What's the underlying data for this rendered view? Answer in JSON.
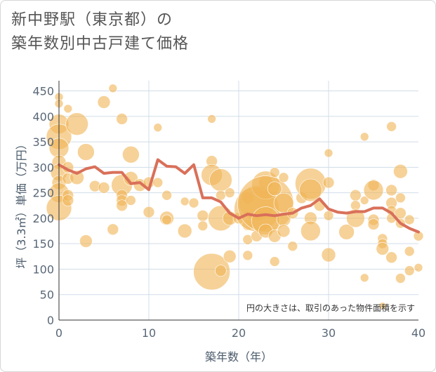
{
  "title": {
    "line1": "新中野駅（東京都）の",
    "line2": "築年数別中古戸建て価格"
  },
  "chart_data": {
    "type": "scatter",
    "title": "新中野駅（東京都）の築年数別中古戸建て価格",
    "xlabel": "築年数（年）",
    "ylabel": "坪（3.3㎡）単価（万円）",
    "xlim": [
      0,
      40
    ],
    "ylim": [
      0,
      470
    ],
    "xticks": [
      0,
      10,
      20,
      30,
      40
    ],
    "yticks": [
      0,
      50,
      100,
      150,
      200,
      250,
      300,
      350,
      400,
      450
    ],
    "annotation": "円の大きさは、取引のあった物件面積を示す",
    "colors": {
      "bubble": "#f0b455",
      "line": "#d9705a",
      "grid": "#d0dde8"
    },
    "bubbles": [
      {
        "x": 0,
        "y": 438,
        "s": 6
      },
      {
        "x": 0,
        "y": 425,
        "s": 6
      },
      {
        "x": 0,
        "y": 385,
        "s": 14
      },
      {
        "x": 0,
        "y": 360,
        "s": 18
      },
      {
        "x": 0,
        "y": 338,
        "s": 14
      },
      {
        "x": 0,
        "y": 310,
        "s": 10
      },
      {
        "x": 0,
        "y": 290,
        "s": 12
      },
      {
        "x": 0,
        "y": 270,
        "s": 10
      },
      {
        "x": 0,
        "y": 250,
        "s": 14
      },
      {
        "x": 0,
        "y": 220,
        "s": 18
      },
      {
        "x": 1,
        "y": 415,
        "s": 6
      },
      {
        "x": 1,
        "y": 300,
        "s": 8
      },
      {
        "x": 1,
        "y": 278,
        "s": 8
      },
      {
        "x": 1,
        "y": 245,
        "s": 8
      },
      {
        "x": 1,
        "y": 235,
        "s": 8
      },
      {
        "x": 2,
        "y": 385,
        "s": 16
      },
      {
        "x": 2,
        "y": 280,
        "s": 10
      },
      {
        "x": 3,
        "y": 330,
        "s": 12
      },
      {
        "x": 3,
        "y": 155,
        "s": 9
      },
      {
        "x": 4,
        "y": 263,
        "s": 8
      },
      {
        "x": 5,
        "y": 428,
        "s": 9
      },
      {
        "x": 5,
        "y": 260,
        "s": 8
      },
      {
        "x": 6,
        "y": 455,
        "s": 6
      },
      {
        "x": 6,
        "y": 178,
        "s": 8
      },
      {
        "x": 7,
        "y": 395,
        "s": 8
      },
      {
        "x": 7,
        "y": 265,
        "s": 15
      },
      {
        "x": 7,
        "y": 245,
        "s": 8
      },
      {
        "x": 7,
        "y": 235,
        "s": 8
      },
      {
        "x": 7,
        "y": 225,
        "s": 8
      },
      {
        "x": 8,
        "y": 325,
        "s": 12
      },
      {
        "x": 8,
        "y": 278,
        "s": 10
      },
      {
        "x": 8,
        "y": 235,
        "s": 7
      },
      {
        "x": 9,
        "y": 265,
        "s": 9
      },
      {
        "x": 10,
        "y": 270,
        "s": 8
      },
      {
        "x": 10,
        "y": 212,
        "s": 8
      },
      {
        "x": 11,
        "y": 378,
        "s": 6
      },
      {
        "x": 11,
        "y": 270,
        "s": 7
      },
      {
        "x": 12,
        "y": 245,
        "s": 7
      },
      {
        "x": 12,
        "y": 200,
        "s": 10
      },
      {
        "x": 12,
        "y": 197,
        "s": 7
      },
      {
        "x": 14,
        "y": 233,
        "s": 6
      },
      {
        "x": 14,
        "y": 175,
        "s": 10
      },
      {
        "x": 15,
        "y": 230,
        "s": 7
      },
      {
        "x": 16,
        "y": 205,
        "s": 8
      },
      {
        "x": 16,
        "y": 185,
        "s": 7
      },
      {
        "x": 17,
        "y": 395,
        "s": 6
      },
      {
        "x": 17,
        "y": 312,
        "s": 8
      },
      {
        "x": 17,
        "y": 285,
        "s": 15
      },
      {
        "x": 17,
        "y": 95,
        "s": 26
      },
      {
        "x": 18,
        "y": 275,
        "s": 16
      },
      {
        "x": 18,
        "y": 245,
        "s": 7
      },
      {
        "x": 18,
        "y": 200,
        "s": 18
      },
      {
        "x": 18,
        "y": 97,
        "s": 8
      },
      {
        "x": 19,
        "y": 250,
        "s": 7
      },
      {
        "x": 19,
        "y": 200,
        "s": 10
      },
      {
        "x": 19,
        "y": 125,
        "s": 9
      },
      {
        "x": 20,
        "y": 200,
        "s": 8
      },
      {
        "x": 21,
        "y": 240,
        "s": 8
      },
      {
        "x": 21,
        "y": 187,
        "s": 8
      },
      {
        "x": 21,
        "y": 158,
        "s": 7
      },
      {
        "x": 21,
        "y": 127,
        "s": 7
      },
      {
        "x": 22,
        "y": 230,
        "s": 25
      },
      {
        "x": 22,
        "y": 218,
        "s": 32
      },
      {
        "x": 22,
        "y": 165,
        "s": 8
      },
      {
        "x": 23,
        "y": 270,
        "s": 10
      },
      {
        "x": 23,
        "y": 265,
        "s": 20
      },
      {
        "x": 23,
        "y": 228,
        "s": 40
      },
      {
        "x": 23,
        "y": 195,
        "s": 20
      },
      {
        "x": 23,
        "y": 175,
        "s": 10
      },
      {
        "x": 24,
        "y": 290,
        "s": 7
      },
      {
        "x": 24,
        "y": 258,
        "s": 10
      },
      {
        "x": 24,
        "y": 165,
        "s": 9
      },
      {
        "x": 24,
        "y": 115,
        "s": 7
      },
      {
        "x": 25,
        "y": 280,
        "s": 7
      },
      {
        "x": 25,
        "y": 230,
        "s": 14
      },
      {
        "x": 25,
        "y": 198,
        "s": 10
      },
      {
        "x": 25,
        "y": 175,
        "s": 9
      },
      {
        "x": 26,
        "y": 210,
        "s": 8
      },
      {
        "x": 26,
        "y": 145,
        "s": 7
      },
      {
        "x": 27,
        "y": 240,
        "s": 8
      },
      {
        "x": 28,
        "y": 268,
        "s": 22
      },
      {
        "x": 28,
        "y": 255,
        "s": 16
      },
      {
        "x": 28,
        "y": 200,
        "s": 9
      },
      {
        "x": 28,
        "y": 175,
        "s": 14
      },
      {
        "x": 29,
        "y": 225,
        "s": 8
      },
      {
        "x": 30,
        "y": 328,
        "s": 6
      },
      {
        "x": 30,
        "y": 270,
        "s": 8
      },
      {
        "x": 30,
        "y": 205,
        "s": 7
      },
      {
        "x": 30,
        "y": 128,
        "s": 10
      },
      {
        "x": 32,
        "y": 173,
        "s": 11
      },
      {
        "x": 33,
        "y": 245,
        "s": 8
      },
      {
        "x": 33,
        "y": 225,
        "s": 7
      },
      {
        "x": 33,
        "y": 200,
        "s": 13
      },
      {
        "x": 34,
        "y": 360,
        "s": 6
      },
      {
        "x": 34,
        "y": 235,
        "s": 6
      },
      {
        "x": 34,
        "y": 83,
        "s": 6
      },
      {
        "x": 35,
        "y": 265,
        "s": 8
      },
      {
        "x": 35,
        "y": 255,
        "s": 14
      },
      {
        "x": 35,
        "y": 197,
        "s": 8
      },
      {
        "x": 35,
        "y": 188,
        "s": 8
      },
      {
        "x": 36,
        "y": 160,
        "s": 7
      },
      {
        "x": 36,
        "y": 150,
        "s": 7
      },
      {
        "x": 36,
        "y": 140,
        "s": 9
      },
      {
        "x": 36,
        "y": 28,
        "s": 5
      },
      {
        "x": 37,
        "y": 380,
        "s": 7
      },
      {
        "x": 37,
        "y": 255,
        "s": 8
      },
      {
        "x": 37,
        "y": 230,
        "s": 8
      },
      {
        "x": 37,
        "y": 215,
        "s": 7
      },
      {
        "x": 37,
        "y": 200,
        "s": 7
      },
      {
        "x": 37,
        "y": 123,
        "s": 8
      },
      {
        "x": 38,
        "y": 292,
        "s": 10
      },
      {
        "x": 38,
        "y": 240,
        "s": 7
      },
      {
        "x": 38,
        "y": 210,
        "s": 8
      },
      {
        "x": 38,
        "y": 190,
        "s": 7
      },
      {
        "x": 38,
        "y": 82,
        "s": 7
      },
      {
        "x": 39,
        "y": 197,
        "s": 7
      },
      {
        "x": 39,
        "y": 135,
        "s": 7
      },
      {
        "x": 39,
        "y": 97,
        "s": 7
      },
      {
        "x": 40,
        "y": 165,
        "s": 7
      },
      {
        "x": 40,
        "y": 103,
        "s": 6
      }
    ],
    "line": {
      "x": [
        0,
        1,
        2,
        3,
        4,
        5,
        6,
        7,
        8,
        9,
        10,
        11,
        12,
        13,
        14,
        15,
        16,
        17,
        18,
        19,
        20,
        21,
        22,
        23,
        24,
        25,
        26,
        27,
        28,
        29,
        30,
        31,
        32,
        33,
        34,
        35,
        36,
        37,
        38,
        39,
        40
      ],
      "y": [
        305,
        295,
        288,
        297,
        301,
        288,
        290,
        290,
        268,
        270,
        256,
        315,
        302,
        301,
        288,
        305,
        240,
        240,
        232,
        210,
        200,
        208,
        205,
        207,
        205,
        208,
        210,
        220,
        225,
        238,
        218,
        212,
        210,
        213,
        213,
        220,
        220,
        210,
        190,
        180,
        173
      ]
    }
  }
}
